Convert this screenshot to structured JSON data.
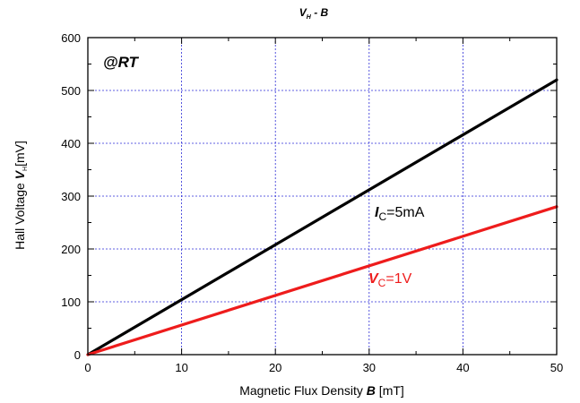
{
  "chart_data": {
    "type": "line",
    "title": {
      "main": "V",
      "sub": "H",
      "rest": " - B"
    },
    "xlabel": {
      "text": "Magnetic Flux Density ",
      "var": "B",
      "unit": " [mT]"
    },
    "ylabel": {
      "text": "Hall Voltage ",
      "var": "V",
      "sub": "H",
      "unit": "[mV]"
    },
    "xlim": [
      0,
      50
    ],
    "ylim": [
      0,
      600
    ],
    "xticks": [
      0,
      10,
      20,
      30,
      40,
      50
    ],
    "yticks": [
      0,
      100,
      200,
      300,
      400,
      500,
      600
    ],
    "grid": true,
    "condition_label": "@RT",
    "series": [
      {
        "label_var": "I",
        "label_sub": "C",
        "label_rest": "=5mA",
        "color": "#000000",
        "x": [
          0,
          50
        ],
        "y": [
          0,
          520
        ]
      },
      {
        "label_var": "V",
        "label_sub": "C",
        "label_rest": "=1V",
        "color": "#ee1c1c",
        "x": [
          0,
          50
        ],
        "y": [
          0,
          280
        ]
      }
    ]
  }
}
